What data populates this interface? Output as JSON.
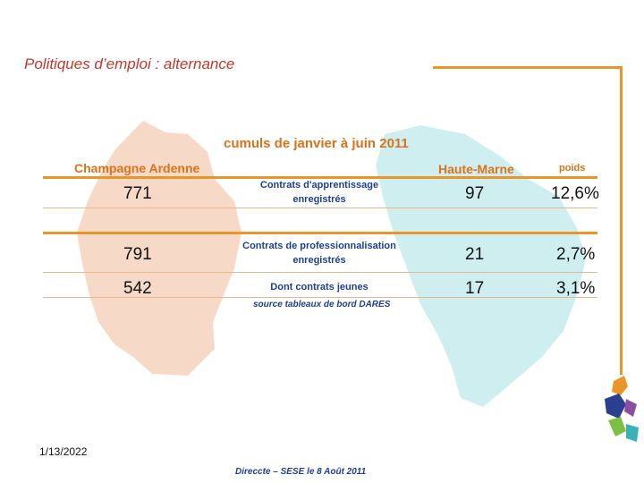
{
  "slide": {
    "title": "Politiques d’emploi : alternance",
    "date": "1/13/2022",
    "footer": "Direccte – SESE le 8 Août 2011"
  },
  "table": {
    "subtitle": "cumuls de janvier à juin 2011",
    "col_region": "Champagne Ardenne",
    "col_dept": "Haute-Marne",
    "col_weight": "poids",
    "rows": [
      {
        "region": "771",
        "label1": "Contrats d'apprentissage",
        "label2": "enregistrés",
        "dept": "97",
        "weight": "12,6%"
      },
      {
        "region": "791",
        "label1": "Contrats de professionnalisation",
        "label2": "enregistrés",
        "dept": "21",
        "weight": "2,7%"
      },
      {
        "region": "542",
        "label1": "Dont contrats jeunes",
        "label2": "",
        "dept": "17",
        "weight": "3,1%"
      }
    ],
    "source": "source tableaux de bord DARES"
  },
  "colors": {
    "accent": "#e8952a",
    "title": "#c0392b",
    "region_map": "#f7d9c8",
    "dept_map": "#cfeef0",
    "label_blue": "#1f3f8f"
  }
}
